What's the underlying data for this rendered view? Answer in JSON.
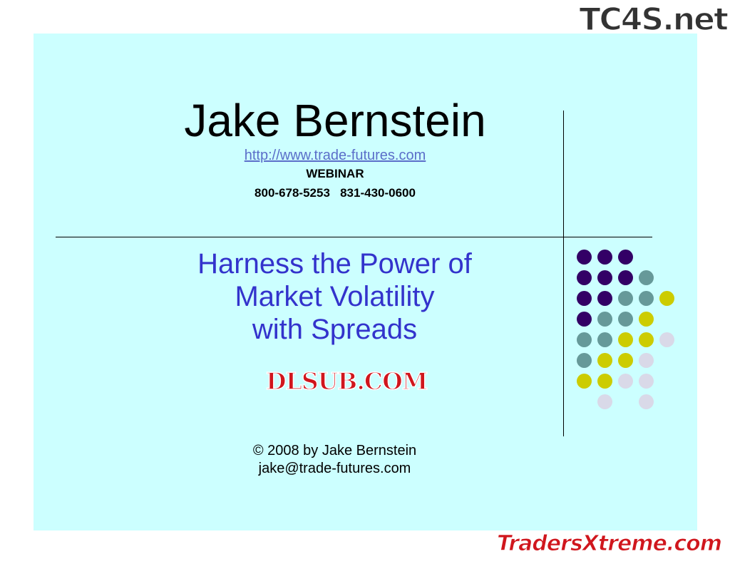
{
  "slide": {
    "title": "Jake Bernstein",
    "url": "http://www.trade-futures.com",
    "webinar": "WEBINAR",
    "phones": "800-678-5253   831-430-0600",
    "subtitle_lines": [
      "Harness the Power of",
      "Market Volatility",
      "with Spreads"
    ],
    "copyright": "© 2008 by Jake Bernstein",
    "email": "jake@trade-futures.com"
  },
  "dot_colors": {
    "P": "#330066",
    "T": "#669999",
    "Y": "#cccc00",
    "L": "#d9d9e8"
  },
  "dot_grid": [
    "PPP",
    "PPPT",
    "PPTTY",
    "PTTY",
    "TTYYL",
    "TYYL",
    "YYLL",
    ".L.L"
  ],
  "watermarks": {
    "center": "DLSUB.COM",
    "top_right": "TC4S.net",
    "bottom_right": "TradersXtreme.com"
  }
}
